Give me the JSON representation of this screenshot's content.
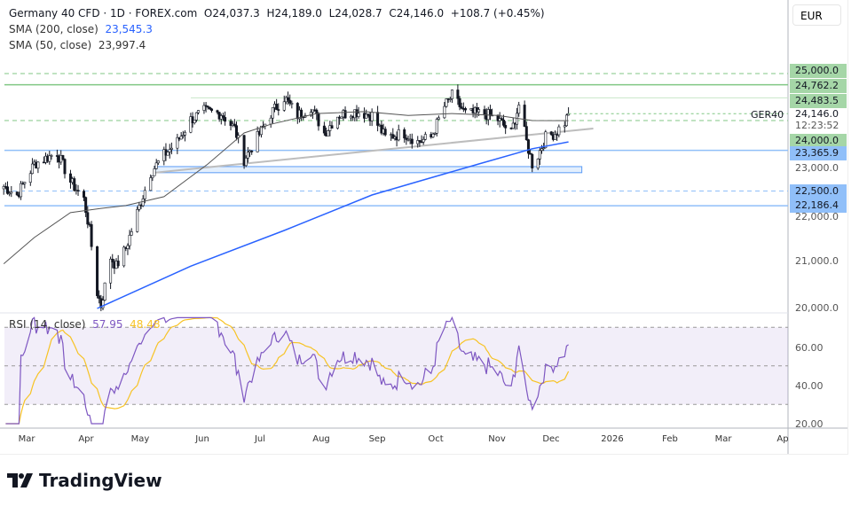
{
  "header": {
    "symbol": "Germany 40 CFD · 1D · FOREX.com",
    "open": "O24,037.3",
    "high": "H24,189.0",
    "low": "L24,028.7",
    "close": "C24,146.0",
    "change": "+108.7 (+0.45%)"
  },
  "indicators": [
    {
      "label": "SMA (200, close)",
      "value": "23,545.3",
      "color": "#2962ff"
    },
    {
      "label": "SMA (50, close)",
      "value": "23,997.4",
      "color": "#555555"
    }
  ],
  "rsi": {
    "label": "RSI (14, close)",
    "value": "57.95",
    "ma_value": "48.48",
    "color": "#7e57c2",
    "ma_color": "#f7c325"
  },
  "currency": "EUR",
  "ticker": "GER40",
  "price_axis": {
    "last_price": "24,146.0",
    "countdown": "12:23:52",
    "levels": [
      {
        "label": "25,000.0",
        "price": 25000,
        "color": "green",
        "style": "dashed"
      },
      {
        "label": "24,762.2",
        "price": 24762.2,
        "color": "green",
        "style": "solid"
      },
      {
        "label": "24,483.5",
        "price": 24483.5,
        "color": "green",
        "style": "solid-light"
      },
      {
        "label": "24,000.0",
        "price": 24000,
        "color": "green",
        "style": "dashed"
      },
      {
        "label": "23,365.9",
        "price": 23365.9,
        "color": "blue",
        "style": "solid"
      },
      {
        "label": "22,500.0",
        "price": 22500,
        "color": "blue",
        "style": "dashed"
      },
      {
        "label": "22,186.4",
        "price": 22186.4,
        "color": "blue",
        "style": "solid"
      }
    ],
    "ticks": [
      "23,000.0",
      "22,000.0",
      "21,000.0",
      "20,000.0"
    ],
    "rsi_ticks": [
      "60.00",
      "40.00",
      "20.00"
    ]
  },
  "time_axis": [
    "Mar",
    "Apr",
    "May",
    "Jun",
    "Jul",
    "Aug",
    "Sep",
    "Oct",
    "Nov",
    "Dec",
    "2026",
    "Feb",
    "Mar",
    "Ap"
  ],
  "brand": "TradingView",
  "chart_data": {
    "type": "candlestick",
    "ylim": [
      20000,
      25300
    ],
    "rsi_ylim": [
      20,
      75
    ],
    "rsi_bands": [
      30,
      50,
      70
    ],
    "closes": [
      [
        "2025-02-17",
        22600
      ],
      [
        "2025-02-24",
        22415
      ],
      [
        "2025-03-05",
        23075
      ],
      [
        "2025-03-17",
        23320
      ],
      [
        "2025-03-24",
        22700
      ],
      [
        "2025-03-31",
        22320
      ],
      [
        "2025-04-03",
        21660
      ],
      [
        "2025-04-07",
        20340
      ],
      [
        "2025-04-09",
        20060
      ],
      [
        "2025-04-14",
        21090
      ],
      [
        "2025-04-17",
        20900
      ],
      [
        "2025-04-22",
        21280
      ],
      [
        "2025-04-28",
        22040
      ],
      [
        "2025-05-05",
        22890
      ],
      [
        "2025-05-12",
        23265
      ],
      [
        "2025-05-19",
        23550
      ],
      [
        "2025-05-26",
        24020
      ],
      [
        "2025-06-02",
        24200
      ],
      [
        "2025-06-11",
        24150
      ],
      [
        "2025-06-18",
        23830
      ],
      [
        "2025-06-23",
        23170
      ],
      [
        "2025-06-30",
        23640
      ],
      [
        "2025-07-07",
        24150
      ],
      [
        "2025-07-14",
        24490
      ],
      [
        "2025-07-21",
        24110
      ],
      [
        "2025-07-28",
        24300
      ],
      [
        "2025-08-04",
        23735
      ],
      [
        "2025-08-11",
        24110
      ],
      [
        "2025-08-20",
        24200
      ],
      [
        "2025-08-29",
        24110
      ],
      [
        "2025-09-05",
        23640
      ],
      [
        "2025-09-15",
        23735
      ],
      [
        "2025-09-22",
        23550
      ],
      [
        "2025-09-29",
        23640
      ],
      [
        "2025-10-06",
        24300
      ],
      [
        "2025-10-10",
        24530
      ],
      [
        "2025-10-17",
        24150
      ],
      [
        "2025-10-27",
        24150
      ],
      [
        "2025-11-03",
        24020
      ],
      [
        "2025-11-10",
        23735
      ],
      [
        "2025-11-14",
        24340
      ],
      [
        "2025-11-18",
        23550
      ],
      [
        "2025-11-21",
        23075
      ],
      [
        "2025-11-24",
        23260
      ],
      [
        "2025-11-28",
        23640
      ],
      [
        "2025-12-03",
        23735
      ],
      [
        "2025-12-08",
        23960
      ],
      [
        "2025-12-10",
        24146
      ]
    ],
    "sma200": [
      [
        "2025-04-07",
        20000
      ],
      [
        "2025-05-26",
        20900
      ],
      [
        "2025-07-14",
        21660
      ],
      [
        "2025-08-29",
        22415
      ],
      [
        "2025-09-22",
        22700
      ],
      [
        "2025-10-24",
        23075
      ],
      [
        "2025-11-21",
        23400
      ],
      [
        "2025-12-10",
        23545.3
      ]
    ],
    "sma50": [
      [
        "2025-02-17",
        20950
      ],
      [
        "2025-03-05",
        21510
      ],
      [
        "2025-03-24",
        22040
      ],
      [
        "2025-04-09",
        22130
      ],
      [
        "2025-04-22",
        22190
      ],
      [
        "2025-05-12",
        22380
      ],
      [
        "2025-06-04",
        23075
      ],
      [
        "2025-06-23",
        23735
      ],
      [
        "2025-07-07",
        23920
      ],
      [
        "2025-07-31",
        24150
      ],
      [
        "2025-08-25",
        24190
      ],
      [
        "2025-09-17",
        24110
      ],
      [
        "2025-10-10",
        24150
      ],
      [
        "2025-11-03",
        24110
      ],
      [
        "2025-11-21",
        24000
      ],
      [
        "2025-12-10",
        23997.4
      ]
    ],
    "trendline": [
      [
        "2025-05-07",
        22890
      ],
      [
        "2025-12-23",
        23830
      ]
    ],
    "support_zone": {
      "from": "2025-05-07",
      "to": "2025-12-17",
      "low": 22890,
      "high": 23020
    }
  }
}
